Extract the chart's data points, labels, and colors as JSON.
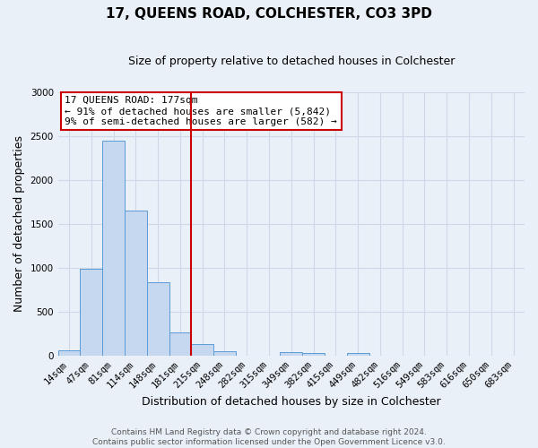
{
  "title": "17, QUEENS ROAD, COLCHESTER, CO3 3PD",
  "subtitle": "Size of property relative to detached houses in Colchester",
  "xlabel": "Distribution of detached houses by size in Colchester",
  "ylabel": "Number of detached properties",
  "bar_labels": [
    "14sqm",
    "47sqm",
    "81sqm",
    "114sqm",
    "148sqm",
    "181sqm",
    "215sqm",
    "248sqm",
    "282sqm",
    "315sqm",
    "349sqm",
    "382sqm",
    "415sqm",
    "449sqm",
    "482sqm",
    "516sqm",
    "549sqm",
    "583sqm",
    "616sqm",
    "650sqm",
    "683sqm"
  ],
  "bar_values": [
    55,
    985,
    2450,
    1650,
    830,
    265,
    130,
    50,
    0,
    0,
    40,
    25,
    0,
    25,
    0,
    0,
    0,
    0,
    0,
    0,
    0
  ],
  "bar_color": "#c5d8f0",
  "bar_edge_color": "#5b9bd5",
  "grid_color": "#d0d8e8",
  "vline_label_idx": 5,
  "vline_color": "#cc0000",
  "annotation_line1": "17 QUEENS ROAD: 177sqm",
  "annotation_line2": "← 91% of detached houses are smaller (5,842)",
  "annotation_line3": "9% of semi-detached houses are larger (582) →",
  "annotation_box_color": "#ffffff",
  "annotation_box_edge": "#cc0000",
  "footer_line1": "Contains HM Land Registry data © Crown copyright and database right 2024.",
  "footer_line2": "Contains public sector information licensed under the Open Government Licence v3.0.",
  "ylim": [
    0,
    3000
  ],
  "yticks": [
    0,
    500,
    1000,
    1500,
    2000,
    2500,
    3000
  ],
  "background_color": "#eaf0f8",
  "plot_bg_color": "#eaf0f8",
  "title_fontsize": 11,
  "subtitle_fontsize": 9,
  "xlabel_fontsize": 9,
  "ylabel_fontsize": 9,
  "tick_fontsize": 7.5,
  "footer_fontsize": 6.5,
  "annotation_fontsize": 8
}
